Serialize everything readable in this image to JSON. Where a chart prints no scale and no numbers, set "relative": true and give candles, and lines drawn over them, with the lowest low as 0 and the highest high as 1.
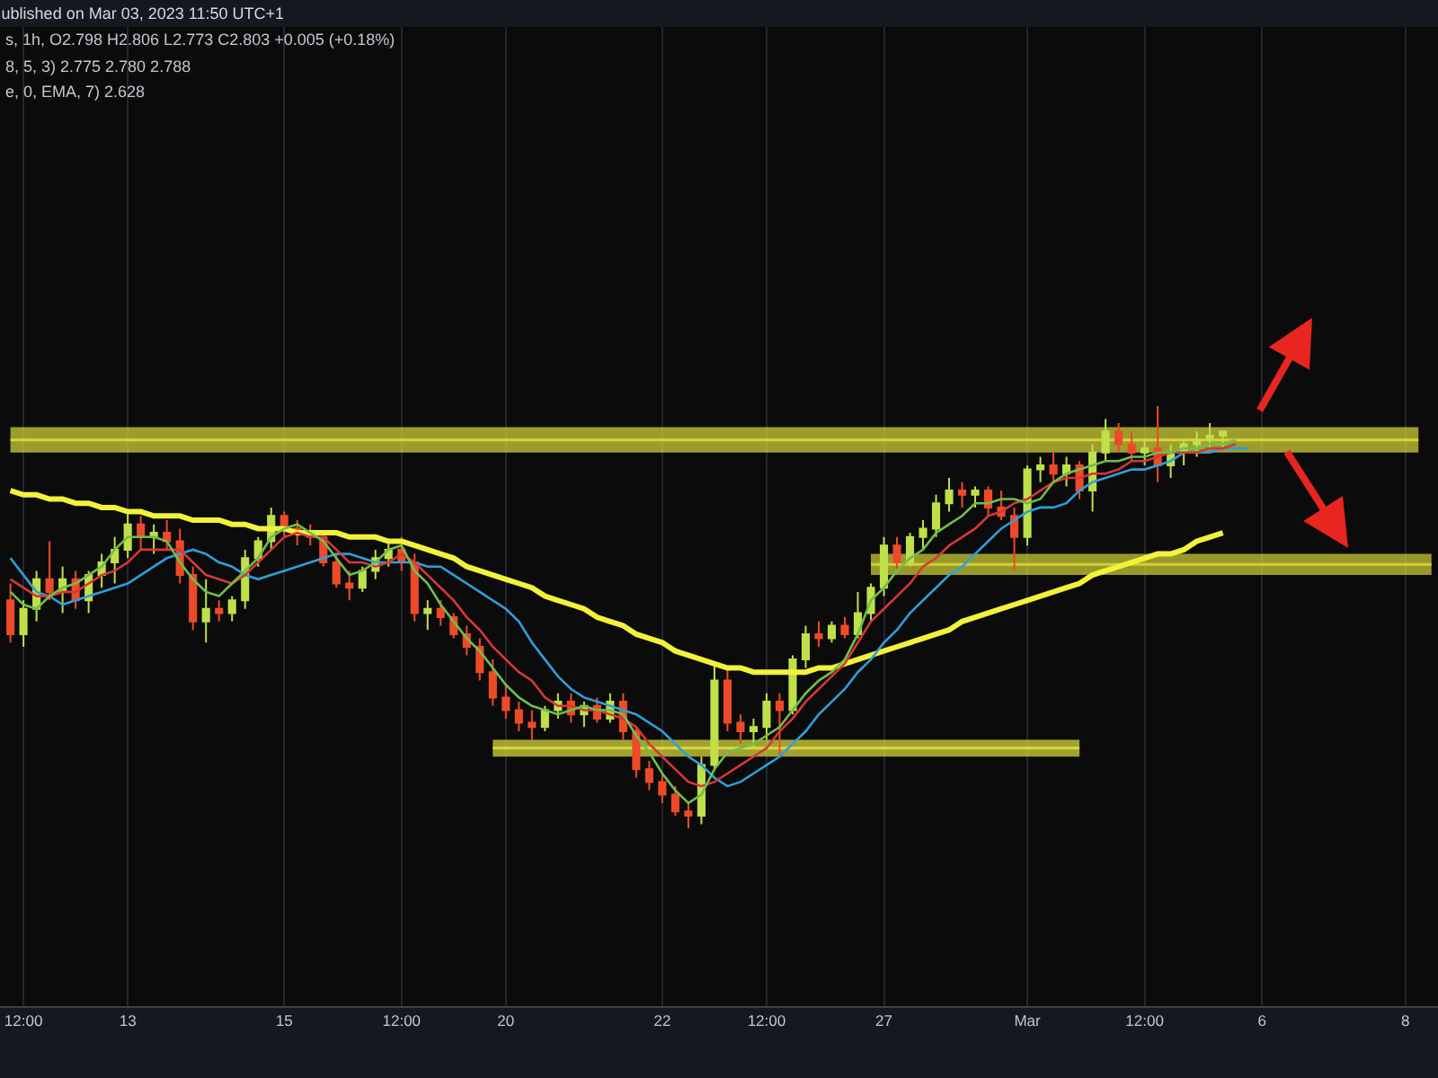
{
  "chart_data": {
    "type": "candlestick",
    "title": "ublished on Mar 03, 2023 11:50 UTC+1",
    "annotations": [
      "s, 1h, O2.798 H2.806 L2.773 C2.803 +0.005 (+0.18%)",
      "8, 5, 3) 2.775 2.780 2.788",
      "e, 0, EMA, 7) 2.628"
    ],
    "relative": true,
    "grid": "x",
    "categories": [
      null,
      "12:00",
      null,
      null,
      null,
      null,
      null,
      null,
      null,
      "13",
      null,
      null,
      null,
      null,
      null,
      null,
      null,
      null,
      null,
      null,
      null,
      "15",
      null,
      null,
      null,
      null,
      null,
      null,
      null,
      null,
      "12:00",
      null,
      null,
      null,
      null,
      null,
      null,
      null,
      "20",
      null,
      null,
      null,
      null,
      null,
      null,
      null,
      null,
      null,
      null,
      null,
      "22",
      null,
      null,
      null,
      null,
      null,
      null,
      null,
      "12:00",
      null,
      null,
      null,
      null,
      null,
      null,
      null,
      null,
      "27",
      null,
      null,
      null,
      null,
      null,
      null,
      null,
      null,
      null,
      null,
      "Mar",
      null,
      null,
      null,
      null,
      null,
      null,
      null,
      null,
      "12:00",
      null,
      null,
      null,
      null,
      null,
      null,
      null,
      null,
      "6",
      null,
      null,
      null,
      null,
      null,
      null,
      null,
      null,
      null,
      null,
      "8",
      null,
      null
    ],
    "ohlc": [
      [
        0.54,
        0.58,
        0.44,
        0.46
      ],
      [
        0.46,
        0.54,
        0.43,
        0.52
      ],
      [
        0.52,
        0.61,
        0.49,
        0.59
      ],
      [
        0.59,
        0.68,
        0.54,
        0.56
      ],
      [
        0.56,
        0.62,
        0.51,
        0.59
      ],
      [
        0.59,
        0.61,
        0.52,
        0.54
      ],
      [
        0.54,
        0.61,
        0.51,
        0.6
      ],
      [
        0.6,
        0.65,
        0.57,
        0.63
      ],
      [
        0.63,
        0.69,
        0.58,
        0.66
      ],
      [
        0.66,
        0.75,
        0.64,
        0.72
      ],
      [
        0.72,
        0.74,
        0.66,
        0.69
      ],
      [
        0.69,
        0.72,
        0.65,
        0.7
      ],
      [
        0.7,
        0.73,
        0.66,
        0.68
      ],
      [
        0.68,
        0.71,
        0.58,
        0.6
      ],
      [
        0.6,
        0.62,
        0.47,
        0.49
      ],
      [
        0.49,
        0.59,
        0.44,
        0.52
      ],
      [
        0.52,
        0.54,
        0.49,
        0.51
      ],
      [
        0.51,
        0.55,
        0.49,
        0.54
      ],
      [
        0.54,
        0.66,
        0.52,
        0.64
      ],
      [
        0.64,
        0.69,
        0.62,
        0.68
      ],
      [
        0.68,
        0.76,
        0.66,
        0.74
      ],
      [
        0.74,
        0.75,
        0.69,
        0.71
      ],
      [
        0.71,
        0.73,
        0.67,
        0.7
      ],
      [
        0.7,
        0.72,
        0.67,
        0.69
      ],
      [
        0.69,
        0.7,
        0.62,
        0.63
      ],
      [
        0.63,
        0.65,
        0.57,
        0.58
      ],
      [
        0.58,
        0.61,
        0.54,
        0.57
      ],
      [
        0.57,
        0.62,
        0.56,
        0.61
      ],
      [
        0.61,
        0.66,
        0.59,
        0.64
      ],
      [
        0.64,
        0.68,
        0.62,
        0.66
      ],
      [
        0.66,
        0.69,
        0.61,
        0.63
      ],
      [
        0.63,
        0.65,
        0.49,
        0.51
      ],
      [
        0.51,
        0.54,
        0.47,
        0.52
      ],
      [
        0.52,
        0.54,
        0.48,
        0.5
      ],
      [
        0.5,
        0.51,
        0.45,
        0.46
      ],
      [
        0.46,
        0.48,
        0.41,
        0.43
      ],
      [
        0.43,
        0.45,
        0.35,
        0.37
      ],
      [
        0.37,
        0.4,
        0.29,
        0.31
      ],
      [
        0.31,
        0.34,
        0.26,
        0.28
      ],
      [
        0.28,
        0.3,
        0.23,
        0.25
      ],
      [
        0.25,
        0.28,
        0.21,
        0.24
      ],
      [
        0.24,
        0.29,
        0.23,
        0.28
      ],
      [
        0.28,
        0.32,
        0.26,
        0.3
      ],
      [
        0.3,
        0.32,
        0.25,
        0.27
      ],
      [
        0.27,
        0.3,
        0.24,
        0.29
      ],
      [
        0.29,
        0.31,
        0.25,
        0.26
      ],
      [
        0.26,
        0.32,
        0.25,
        0.3
      ],
      [
        0.3,
        0.32,
        0.21,
        0.23
      ],
      [
        0.23,
        0.24,
        0.12,
        0.14
      ],
      [
        0.14,
        0.16,
        0.09,
        0.11
      ],
      [
        0.11,
        0.13,
        0.06,
        0.08
      ],
      [
        0.08,
        0.1,
        0.03,
        0.04
      ],
      [
        0.04,
        0.06,
        0,
        0.03
      ],
      [
        0.03,
        0.17,
        0.01,
        0.15
      ],
      [
        0.15,
        0.39,
        0.14,
        0.35
      ],
      [
        0.35,
        0.38,
        0.23,
        0.25
      ],
      [
        0.25,
        0.27,
        0.2,
        0.23
      ],
      [
        0.23,
        0.26,
        0.19,
        0.24
      ],
      [
        0.24,
        0.32,
        0.21,
        0.3
      ],
      [
        0.3,
        0.32,
        0.17,
        0.28
      ],
      [
        0.28,
        0.41,
        0.27,
        0.4
      ],
      [
        0.4,
        0.48,
        0.38,
        0.46
      ],
      [
        0.46,
        0.49,
        0.43,
        0.45
      ],
      [
        0.45,
        0.49,
        0.44,
        0.48
      ],
      [
        0.48,
        0.5,
        0.45,
        0.46
      ],
      [
        0.46,
        0.56,
        0.45,
        0.51
      ],
      [
        0.51,
        0.58,
        0.49,
        0.57
      ],
      [
        0.57,
        0.69,
        0.55,
        0.67
      ],
      [
        0.67,
        0.69,
        0.61,
        0.63
      ],
      [
        0.63,
        0.7,
        0.62,
        0.69
      ],
      [
        0.69,
        0.73,
        0.66,
        0.71
      ],
      [
        0.71,
        0.79,
        0.69,
        0.77
      ],
      [
        0.77,
        0.83,
        0.75,
        0.8
      ],
      [
        0.8,
        0.82,
        0.76,
        0.79
      ],
      [
        0.79,
        0.81,
        0.76,
        0.8
      ],
      [
        0.8,
        0.81,
        0.74,
        0.76
      ],
      [
        0.76,
        0.8,
        0.73,
        0.74
      ],
      [
        0.74,
        0.76,
        0.61,
        0.69
      ],
      [
        0.69,
        0.86,
        0.67,
        0.85
      ],
      [
        0.85,
        0.88,
        0.82,
        0.86
      ],
      [
        0.86,
        0.89,
        0.82,
        0.84
      ],
      [
        0.84,
        0.88,
        0.81,
        0.86
      ],
      [
        0.86,
        0.87,
        0.78,
        0.8
      ],
      [
        0.8,
        0.91,
        0.75,
        0.89
      ],
      [
        0.89,
        0.97,
        0.87,
        0.94
      ],
      [
        0.94,
        0.96,
        0.89,
        0.91
      ],
      [
        0.91,
        0.94,
        0.87,
        0.89
      ],
      [
        0.89,
        0.92,
        0.86,
        0.9
      ],
      [
        0.9,
        1,
        0.82,
        0.86
      ],
      [
        0.86,
        0.91,
        0.83,
        0.89
      ],
      [
        0.89,
        0.92,
        0.86,
        0.91
      ],
      [
        0.91,
        0.94,
        0.88,
        0.92
      ],
      [
        0.92,
        0.96,
        0.9,
        0.93
      ],
      [
        0.93,
        0.94,
        0.9,
        0.94
      ],
      null,
      null,
      null,
      null,
      null,
      null,
      null,
      null,
      null,
      null,
      null,
      null,
      null,
      null,
      null,
      null
    ],
    "series": [
      {
        "type": "line",
        "color": "#f2f23a",
        "values": [
          0.8,
          0.79,
          0.79,
          0.78,
          0.78,
          0.77,
          0.77,
          0.76,
          0.76,
          0.75,
          0.75,
          0.74,
          0.74,
          0.74,
          0.73,
          0.73,
          0.73,
          0.72,
          0.72,
          0.71,
          0.71,
          0.71,
          0.7,
          0.7,
          0.7,
          0.7,
          0.69,
          0.69,
          0.69,
          0.68,
          0.68,
          0.67,
          0.66,
          0.65,
          0.64,
          0.62,
          0.61,
          0.6,
          0.59,
          0.58,
          0.57,
          0.55,
          0.54,
          0.53,
          0.52,
          0.5,
          0.49,
          0.48,
          0.46,
          0.45,
          0.44,
          0.42,
          0.41,
          0.4,
          0.39,
          0.38,
          0.38,
          0.37,
          0.37,
          0.37,
          0.37,
          0.37,
          0.38,
          0.38,
          0.39,
          0.4,
          0.41,
          0.42,
          0.43,
          0.44,
          0.45,
          0.46,
          0.47,
          0.49,
          0.5,
          0.51,
          0.52,
          0.53,
          0.54,
          0.55,
          0.56,
          0.57,
          0.58,
          0.6,
          0.61,
          0.62,
          0.63,
          0.64,
          0.65,
          0.65,
          0.66,
          0.68,
          0.69,
          0.7,
          null,
          null,
          null,
          null,
          null,
          null,
          null,
          null,
          null,
          null,
          null,
          null,
          null,
          null,
          null,
          null
        ]
      },
      {
        "type": "line",
        "color": "#2f9fd8",
        "values": [
          0.64,
          0.6,
          0.56,
          0.55,
          0.53,
          0.54,
          0.55,
          0.56,
          0.57,
          0.58,
          0.6,
          0.62,
          0.64,
          0.65,
          0.66,
          0.65,
          0.63,
          0.62,
          0.6,
          0.59,
          0.6,
          0.61,
          0.62,
          0.63,
          0.64,
          0.65,
          0.65,
          0.64,
          0.63,
          0.63,
          0.63,
          0.63,
          0.62,
          0.62,
          0.6,
          0.58,
          0.56,
          0.54,
          0.52,
          0.49,
          0.44,
          0.4,
          0.36,
          0.33,
          0.31,
          0.3,
          0.29,
          0.28,
          0.27,
          0.25,
          0.23,
          0.2,
          0.17,
          0.15,
          0.12,
          0.1,
          0.11,
          0.13,
          0.15,
          0.17,
          0.2,
          0.23,
          0.27,
          0.3,
          0.33,
          0.37,
          0.4,
          0.44,
          0.47,
          0.51,
          0.54,
          0.57,
          0.6,
          0.62,
          0.65,
          0.68,
          0.71,
          0.73,
          0.75,
          0.76,
          0.76,
          0.77,
          0.8,
          0.82,
          0.83,
          0.84,
          0.85,
          0.85,
          0.86,
          0.87,
          0.89,
          0.89,
          0.89,
          0.9,
          0.9,
          0.9,
          null,
          null,
          null,
          null,
          null,
          null,
          null,
          null,
          null,
          null,
          null,
          null,
          null,
          null
        ]
      },
      {
        "type": "line",
        "color": "#d93636",
        "values": [
          0.59,
          0.57,
          0.55,
          0.55,
          0.56,
          0.56,
          0.58,
          0.6,
          0.61,
          0.63,
          0.66,
          0.66,
          0.66,
          0.66,
          0.63,
          0.6,
          0.59,
          0.58,
          0.6,
          0.63,
          0.66,
          0.69,
          0.7,
          0.69,
          0.69,
          0.66,
          0.63,
          0.63,
          0.62,
          0.63,
          0.65,
          0.63,
          0.6,
          0.57,
          0.54,
          0.5,
          0.47,
          0.43,
          0.4,
          0.37,
          0.35,
          0.31,
          0.29,
          0.29,
          0.28,
          0.28,
          0.27,
          0.26,
          0.24,
          0.2,
          0.17,
          0.14,
          0.11,
          0.1,
          0.11,
          0.13,
          0.15,
          0.17,
          0.19,
          0.23,
          0.26,
          0.3,
          0.33,
          0.36,
          0.39,
          0.44,
          0.49,
          0.52,
          0.55,
          0.58,
          0.62,
          0.64,
          0.67,
          0.69,
          0.71,
          0.74,
          0.75,
          0.77,
          0.78,
          0.8,
          0.82,
          0.83,
          0.83,
          0.84,
          0.84,
          0.85,
          0.87,
          0.87,
          0.88,
          0.89,
          0.89,
          0.89,
          0.9,
          0.9,
          0.91,
          null,
          null,
          null,
          null,
          null,
          null,
          null,
          null,
          null,
          null,
          null,
          null,
          null,
          null,
          null
        ]
      },
      {
        "type": "line",
        "color": "#6fbf4a",
        "values": [
          0.56,
          0.53,
          0.52,
          0.55,
          0.57,
          0.58,
          0.6,
          0.62,
          0.66,
          0.69,
          0.69,
          0.69,
          0.68,
          0.63,
          0.59,
          0.56,
          0.55,
          0.58,
          0.61,
          0.64,
          0.69,
          0.71,
          0.72,
          0.7,
          0.68,
          0.64,
          0.6,
          0.61,
          0.63,
          0.66,
          0.67,
          0.61,
          0.58,
          0.53,
          0.49,
          0.45,
          0.42,
          0.38,
          0.34,
          0.31,
          0.29,
          0.28,
          0.27,
          0.28,
          0.29,
          0.28,
          0.28,
          0.27,
          0.22,
          0.18,
          0.13,
          0.09,
          0.06,
          0.08,
          0.14,
          0.18,
          0.19,
          0.2,
          0.22,
          0.24,
          0.28,
          0.32,
          0.35,
          0.37,
          0.4,
          0.46,
          0.54,
          0.57,
          0.61,
          0.64,
          0.66,
          0.7,
          0.72,
          0.74,
          0.77,
          0.77,
          0.78,
          0.78,
          0.77,
          0.78,
          0.82,
          0.84,
          0.85,
          0.86,
          0.87,
          0.87,
          0.88,
          0.88,
          0.89,
          0.89,
          0.9,
          0.9,
          0.91,
          0.91,
          0.92,
          null,
          null,
          null,
          null,
          null,
          null,
          null,
          null,
          null,
          null,
          null,
          null,
          null,
          null,
          null
        ]
      },
      {
        "type": "line",
        "color": "#d6d63a",
        "values": [
          0.92,
          0.92,
          0.92,
          0.92,
          0.92,
          0.92,
          0.92,
          0.92,
          0.92,
          0.92,
          0.92,
          0.92,
          0.92,
          0.92,
          0.92,
          0.92,
          0.92,
          0.92,
          0.92,
          0.92,
          0.92,
          0.92,
          0.92,
          0.92,
          0.92,
          0.92,
          0.92,
          0.92,
          0.92,
          0.92,
          0.92,
          0.92,
          0.92,
          0.92,
          0.92,
          0.92,
          0.92,
          0.92,
          0.92,
          0.92,
          0.92,
          0.92,
          0.92,
          0.92,
          0.92,
          0.92,
          0.92,
          0.92,
          0.92,
          0.92,
          0.92,
          0.92,
          0.92,
          0.92,
          0.92,
          0.92,
          0.92,
          0.92,
          0.92,
          0.92,
          0.92,
          0.92,
          0.92,
          0.92,
          0.92,
          0.92,
          0.92,
          0.92,
          0.92,
          0.92,
          0.92,
          0.92,
          0.92,
          0.92,
          0.92,
          0.92,
          0.92,
          0.92,
          0.92,
          0.92,
          0.92,
          0.92,
          0.92,
          0.92,
          0.92,
          0.92,
          0.92,
          0.92,
          0.92,
          0.92,
          0.92,
          0.92,
          0.92,
          0.92,
          0.92,
          0.92,
          0.92,
          0.92,
          0.92,
          0.92,
          0.92,
          0.92,
          0.92,
          0.92,
          0.92,
          0.92,
          0.92,
          0.92,
          0.92,
          null
        ],
        "lower": [
          0.89,
          0.89,
          0.89,
          0.89,
          0.89,
          0.89,
          0.89,
          0.89,
          0.89,
          0.89,
          0.89,
          0.89,
          0.89,
          0.89,
          0.89,
          0.89,
          0.89,
          0.89,
          0.89,
          0.89,
          0.89,
          0.89,
          0.89,
          0.89,
          0.89,
          0.89,
          0.89,
          0.89,
          0.89,
          0.89,
          0.89,
          0.89,
          0.89,
          0.89,
          0.89,
          0.89,
          0.89,
          0.89,
          0.89,
          0.89,
          0.89,
          0.89,
          0.89,
          0.89,
          0.89,
          0.89,
          0.89,
          0.89,
          0.89,
          0.89,
          0.89,
          0.89,
          0.89,
          0.89,
          0.89,
          0.89,
          0.89,
          0.89,
          0.89,
          0.89,
          0.89,
          0.89,
          0.89,
          0.89,
          0.89,
          0.89,
          0.89,
          0.89,
          0.89,
          0.89,
          0.89,
          0.89,
          0.89,
          0.89,
          0.89,
          0.89,
          0.89,
          0.89,
          0.89,
          0.89,
          0.89,
          0.89,
          0.89,
          0.89,
          0.89,
          0.89,
          0.89,
          0.89,
          0.89,
          0.89,
          0.89,
          0.89,
          0.89,
          0.89,
          0.89,
          0.89,
          0.89,
          0.89,
          0.89,
          0.89,
          0.89,
          0.89,
          0.89,
          0.89,
          0.89,
          0.89,
          0.89,
          0.89,
          0.89,
          null
        ],
        "upper": [
          0.95,
          0.95,
          0.95,
          0.95,
          0.95,
          0.95,
          0.95,
          0.95,
          0.95,
          0.95,
          0.95,
          0.95,
          0.95,
          0.95,
          0.95,
          0.95,
          0.95,
          0.95,
          0.95,
          0.95,
          0.95,
          0.95,
          0.95,
          0.95,
          0.95,
          0.95,
          0.95,
          0.95,
          0.95,
          0.95,
          0.95,
          0.95,
          0.95,
          0.95,
          0.95,
          0.95,
          0.95,
          0.95,
          0.95,
          0.95,
          0.95,
          0.95,
          0.95,
          0.95,
          0.95,
          0.95,
          0.95,
          0.95,
          0.95,
          0.95,
          0.95,
          0.95,
          0.95,
          0.95,
          0.95,
          0.95,
          0.95,
          0.95,
          0.95,
          0.95,
          0.95,
          0.95,
          0.95,
          0.95,
          0.95,
          0.95,
          0.95,
          0.95,
          0.95,
          0.95,
          0.95,
          0.95,
          0.95,
          0.95,
          0.95,
          0.95,
          0.95,
          0.95,
          0.95,
          0.95,
          0.95,
          0.95,
          0.95,
          0.95,
          0.95,
          0.95,
          0.95,
          0.95,
          0.95,
          0.95,
          0.95,
          0.95,
          0.95,
          0.95,
          0.95,
          0.95,
          0.95,
          0.95,
          0.95,
          0.95,
          0.95,
          0.95,
          0.95,
          0.95,
          0.95,
          0.95,
          0.95,
          0.95,
          0.95,
          null
        ]
      },
      {
        "type": "line",
        "color": "#d0d036",
        "values": [
          null,
          null,
          null,
          null,
          null,
          null,
          null,
          null,
          null,
          null,
          null,
          null,
          null,
          null,
          null,
          null,
          null,
          null,
          null,
          null,
          null,
          null,
          null,
          null,
          null,
          null,
          null,
          null,
          null,
          null,
          null,
          null,
          null,
          null,
          null,
          null,
          null,
          null,
          null,
          null,
          null,
          null,
          null,
          null,
          null,
          null,
          null,
          null,
          null,
          null,
          null,
          null,
          null,
          null,
          null,
          null,
          null,
          null,
          null,
          null,
          null,
          null,
          null,
          null,
          null,
          null,
          0.625,
          0.625,
          0.625,
          0.625,
          0.625,
          0.625,
          0.625,
          0.625,
          0.625,
          0.625,
          0.625,
          0.625,
          0.625,
          0.625,
          0.625,
          0.625,
          0.625,
          0.625,
          0.625,
          0.625,
          0.625,
          0.625,
          0.625,
          0.625,
          0.625,
          0.625,
          0.625,
          0.625,
          0.625,
          0.625,
          0.625,
          0.625,
          0.625,
          0.625,
          0.625,
          0.625,
          0.625,
          0.625,
          0.625,
          0.625,
          0.625,
          0.625,
          0.625,
          0.625
        ],
        "lower": [
          null,
          null,
          null,
          null,
          null,
          null,
          null,
          null,
          null,
          null,
          null,
          null,
          null,
          null,
          null,
          null,
          null,
          null,
          null,
          null,
          null,
          null,
          null,
          null,
          null,
          null,
          null,
          null,
          null,
          null,
          null,
          null,
          null,
          null,
          null,
          null,
          null,
          null,
          null,
          null,
          null,
          null,
          null,
          null,
          null,
          null,
          null,
          null,
          null,
          null,
          null,
          null,
          null,
          null,
          null,
          null,
          null,
          null,
          null,
          null,
          null,
          null,
          null,
          null,
          null,
          null,
          0.6,
          0.6,
          0.6,
          0.6,
          0.6,
          0.6,
          0.6,
          0.6,
          0.6,
          0.6,
          0.6,
          0.6,
          0.6,
          0.6,
          0.6,
          0.6,
          0.6,
          0.6,
          0.6,
          0.6,
          0.6,
          0.6,
          0.6,
          0.6,
          0.6,
          0.6,
          0.6,
          0.6,
          0.6,
          0.6,
          0.6,
          0.6,
          0.6,
          0.6,
          0.6,
          0.6,
          0.6,
          0.6,
          0.6,
          0.6,
          0.6,
          0.6,
          0.6,
          0.6
        ],
        "upper": [
          null,
          null,
          null,
          null,
          null,
          null,
          null,
          null,
          null,
          null,
          null,
          null,
          null,
          null,
          null,
          null,
          null,
          null,
          null,
          null,
          null,
          null,
          null,
          null,
          null,
          null,
          null,
          null,
          null,
          null,
          null,
          null,
          null,
          null,
          null,
          null,
          null,
          null,
          null,
          null,
          null,
          null,
          null,
          null,
          null,
          null,
          null,
          null,
          null,
          null,
          null,
          null,
          null,
          null,
          null,
          null,
          null,
          null,
          null,
          null,
          null,
          null,
          null,
          null,
          null,
          null,
          0.65,
          0.65,
          0.65,
          0.65,
          0.65,
          0.65,
          0.65,
          0.65,
          0.65,
          0.65,
          0.65,
          0.65,
          0.65,
          0.65,
          0.65,
          0.65,
          0.65,
          0.65,
          0.65,
          0.65,
          0.65,
          0.65,
          0.65,
          0.65,
          0.65,
          0.65,
          0.65,
          0.65,
          0.65,
          0.65,
          0.65,
          0.65,
          0.65,
          0.65,
          0.65,
          0.65,
          0.65,
          0.65,
          0.65,
          0.65,
          0.65,
          0.65,
          0.65,
          0.65
        ]
      },
      {
        "type": "line",
        "color": "#dcdc40",
        "values": [
          null,
          null,
          null,
          null,
          null,
          null,
          null,
          null,
          null,
          null,
          null,
          null,
          null,
          null,
          null,
          null,
          null,
          null,
          null,
          null,
          null,
          null,
          null,
          null,
          null,
          null,
          null,
          null,
          null,
          null,
          null,
          null,
          null,
          null,
          null,
          null,
          null,
          0.19,
          0.19,
          0.19,
          0.19,
          0.19,
          0.19,
          0.19,
          0.19,
          0.19,
          0.19,
          0.19,
          0.19,
          0.19,
          0.19,
          0.19,
          0.19,
          0.19,
          0.19,
          0.19,
          0.19,
          0.19,
          0.19,
          0.19,
          0.19,
          0.19,
          0.19,
          0.19,
          0.19,
          0.19,
          0.19,
          0.19,
          0.19,
          0.19,
          0.19,
          0.19,
          0.19,
          0.19,
          0.19,
          0.19,
          0.19,
          0.19,
          0.19,
          0.19,
          0.19,
          0.19,
          0.19,
          null,
          null,
          null,
          null,
          null,
          null,
          null,
          null,
          null,
          null,
          null,
          null,
          null,
          null,
          null,
          null,
          null,
          null,
          null,
          null,
          null,
          null,
          null,
          null,
          null,
          null,
          null
        ],
        "lower": [
          null,
          null,
          null,
          null,
          null,
          null,
          null,
          null,
          null,
          null,
          null,
          null,
          null,
          null,
          null,
          null,
          null,
          null,
          null,
          null,
          null,
          null,
          null,
          null,
          null,
          null,
          null,
          null,
          null,
          null,
          null,
          null,
          null,
          null,
          null,
          null,
          null,
          0.17,
          0.17,
          0.17,
          0.17,
          0.17,
          0.17,
          0.17,
          0.17,
          0.17,
          0.17,
          0.17,
          0.17,
          0.17,
          0.17,
          0.17,
          0.17,
          0.17,
          0.17,
          0.17,
          0.17,
          0.17,
          0.17,
          0.17,
          0.17,
          0.17,
          0.17,
          0.17,
          0.17,
          0.17,
          0.17,
          0.17,
          0.17,
          0.17,
          0.17,
          0.17,
          0.17,
          0.17,
          0.17,
          0.17,
          0.17,
          0.17,
          0.17,
          0.17,
          0.17,
          0.17,
          0.17,
          null,
          null,
          null,
          null,
          null,
          null,
          null,
          null,
          null,
          null,
          null,
          null,
          null,
          null,
          null,
          null,
          null,
          null,
          null,
          null,
          null,
          null,
          null,
          null,
          null,
          null,
          null
        ],
        "upper": [
          null,
          null,
          null,
          null,
          null,
          null,
          null,
          null,
          null,
          null,
          null,
          null,
          null,
          null,
          null,
          null,
          null,
          null,
          null,
          null,
          null,
          null,
          null,
          null,
          null,
          null,
          null,
          null,
          null,
          null,
          null,
          null,
          null,
          null,
          null,
          null,
          null,
          0.21,
          0.21,
          0.21,
          0.21,
          0.21,
          0.21,
          0.21,
          0.21,
          0.21,
          0.21,
          0.21,
          0.21,
          0.21,
          0.21,
          0.21,
          0.21,
          0.21,
          0.21,
          0.21,
          0.21,
          0.21,
          0.21,
          0.21,
          0.21,
          0.21,
          0.21,
          0.21,
          0.21,
          0.21,
          0.21,
          0.21,
          0.21,
          0.21,
          0.21,
          0.21,
          0.21,
          0.21,
          0.21,
          0.21,
          0.21,
          0.21,
          0.21,
          0.21,
          0.21,
          0.21,
          0.21,
          null,
          null,
          null,
          null,
          null,
          null,
          null,
          null,
          null,
          null,
          null,
          null,
          null,
          null,
          null,
          null,
          null,
          null,
          null,
          null,
          null,
          null,
          null,
          null,
          null,
          null,
          null
        ]
      }
    ]
  }
}
